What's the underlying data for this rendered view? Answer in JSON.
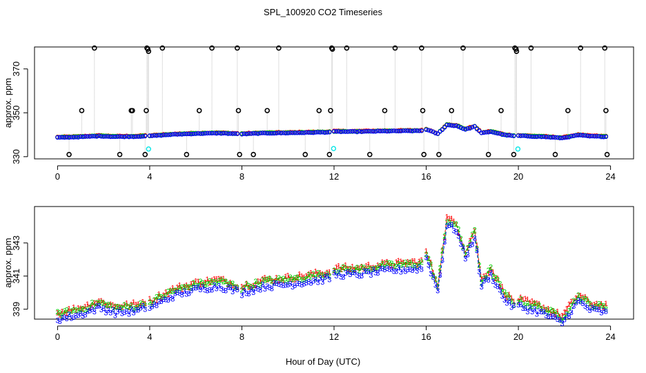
{
  "chart_data": {
    "title": "SPL_100920  CO2 Timeseries",
    "xlabel": "Hour of Day (UTC)",
    "colors": {
      "s1": "#ff0000",
      "s2": "#00cc00",
      "s3": "#0000ff",
      "outlier": "#000000",
      "flag": "#00e5e5",
      "guide": "#bebebe"
    },
    "panels": [
      {
        "type": "scatter",
        "name": "overview",
        "ylabel": "approx. ppm",
        "xlim": [
          -1,
          25
        ],
        "ylim": [
          329,
          380
        ],
        "xticks": [
          0,
          4,
          8,
          12,
          16,
          20,
          24
        ],
        "yticks": [
          330,
          350,
          370
        ],
        "curve_anchors": [
          [
            0,
            338.8
          ],
          [
            1,
            339.1
          ],
          [
            1.8,
            339.5
          ],
          [
            2.5,
            339.2
          ],
          [
            3.5,
            339.3
          ],
          [
            3.9,
            339.6
          ],
          [
            4,
            339.5
          ],
          [
            5,
            340.2
          ],
          [
            6,
            340.6
          ],
          [
            7,
            340.8
          ],
          [
            7.8,
            340.5
          ],
          [
            8,
            340.4
          ],
          [
            9,
            340.8
          ],
          [
            10,
            340.9
          ],
          [
            11,
            341.1
          ],
          [
            11.9,
            341.3
          ],
          [
            12,
            341.5
          ],
          [
            13,
            341.5
          ],
          [
            14,
            341.7
          ],
          [
            15,
            341.8
          ],
          [
            15.9,
            341.9
          ],
          [
            16,
            342.5
          ],
          [
            16.5,
            340.5
          ],
          [
            16.9,
            344.5
          ],
          [
            17.3,
            344.2
          ],
          [
            17.7,
            342.5
          ],
          [
            18.1,
            343.8
          ],
          [
            18.4,
            340.8
          ],
          [
            18.8,
            341.5
          ],
          [
            19.4,
            340.0
          ],
          [
            19.9,
            339.4
          ],
          [
            20,
            339.6
          ],
          [
            21,
            339.2
          ],
          [
            21.9,
            338.6
          ],
          [
            22.6,
            339.9
          ],
          [
            23.1,
            339.4
          ],
          [
            23.8,
            339.2
          ]
        ],
        "gap_hours": [
          4,
          8,
          12,
          16,
          20
        ],
        "outliers": [
          [
            0.5,
            331
          ],
          [
            1.05,
            351
          ],
          [
            1.6,
            380
          ],
          [
            2.7,
            331
          ],
          [
            3.2,
            351
          ],
          [
            3.25,
            351
          ],
          [
            3.8,
            331
          ],
          [
            3.85,
            351
          ],
          [
            3.88,
            380
          ],
          [
            3.92,
            379
          ],
          [
            3.95,
            378
          ],
          [
            4.55,
            380
          ],
          [
            5.6,
            331
          ],
          [
            6.15,
            351
          ],
          [
            6.7,
            380
          ],
          [
            7.8,
            380
          ],
          [
            7.85,
            351
          ],
          [
            7.9,
            331
          ],
          [
            8.5,
            331
          ],
          [
            9.1,
            351
          ],
          [
            9.6,
            380
          ],
          [
            10.75,
            331
          ],
          [
            11.35,
            351
          ],
          [
            11.8,
            331
          ],
          [
            11.85,
            351
          ],
          [
            11.9,
            380
          ],
          [
            11.93,
            379
          ],
          [
            12.55,
            380
          ],
          [
            13.55,
            331
          ],
          [
            14.2,
            351
          ],
          [
            14.65,
            380
          ],
          [
            15.8,
            380
          ],
          [
            15.85,
            351
          ],
          [
            15.9,
            331
          ],
          [
            16.55,
            331
          ],
          [
            17.1,
            351
          ],
          [
            17.6,
            380
          ],
          [
            18.7,
            331
          ],
          [
            19.25,
            351
          ],
          [
            19.8,
            331
          ],
          [
            19.85,
            380
          ],
          [
            19.9,
            379
          ],
          [
            19.92,
            378
          ],
          [
            20.55,
            380
          ],
          [
            21.6,
            331
          ],
          [
            22.15,
            351
          ],
          [
            22.7,
            380
          ],
          [
            23.75,
            380
          ],
          [
            23.8,
            351
          ],
          [
            23.85,
            331
          ]
        ],
        "flags": [
          [
            3.95,
            333.5
          ],
          [
            11.98,
            333.7
          ],
          [
            19.98,
            333.5
          ]
        ]
      },
      {
        "type": "line",
        "name": "zoom",
        "ylabel": "approx. ppm",
        "xlim": [
          -1,
          25
        ],
        "ylim": [
          338.4,
          345.2
        ],
        "xticks": [
          0,
          4,
          8,
          12,
          16,
          20,
          24
        ],
        "yticks": [
          339,
          341,
          343
        ],
        "series": [
          {
            "name": "1",
            "color": "#ff0000",
            "offset": 0.0
          },
          {
            "name": "2",
            "color": "#00cc00",
            "offset": -0.1
          },
          {
            "name": "3",
            "color": "#0000ff",
            "offset": -0.4
          }
        ]
      }
    ]
  }
}
